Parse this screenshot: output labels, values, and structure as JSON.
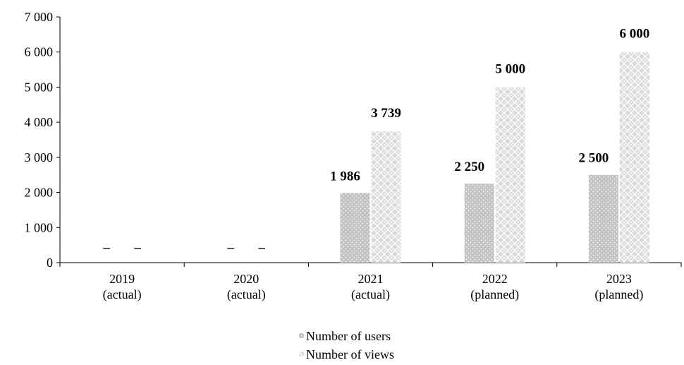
{
  "chart_data": {
    "type": "bar",
    "categories": [
      [
        "2019",
        "(actual)"
      ],
      [
        "2020",
        "(actual)"
      ],
      [
        "2021",
        "(actual)"
      ],
      [
        "2022",
        "(planned)"
      ],
      [
        "2023",
        "(planned)"
      ]
    ],
    "series": [
      {
        "name": "Number of users",
        "values": [
          null,
          null,
          1986,
          2250,
          2500
        ],
        "labels": [
          "–",
          "–",
          "1 986",
          "2 250",
          "2 500"
        ],
        "color": "#c8c8c8",
        "pattern": "dots"
      },
      {
        "name": "Number of views",
        "values": [
          null,
          null,
          3739,
          5000,
          6000
        ],
        "labels": [
          "–",
          "–",
          "3 739",
          "5 000",
          "6 000"
        ],
        "color": "#dcdcdc",
        "pattern": "diamond-lattice"
      }
    ],
    "yticks": [
      "0",
      "1 000",
      "2 000",
      "3 000",
      "4 000",
      "5 000",
      "6 000",
      "7 000"
    ],
    "ylim": [
      0,
      7000
    ],
    "grid": false,
    "legend_position": "bottom-center"
  }
}
